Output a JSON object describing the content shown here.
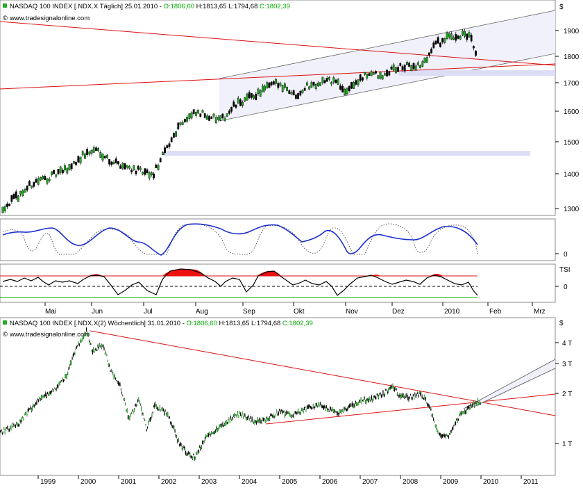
{
  "top_panel": {
    "header": {
      "title": "NASDAQ 100 INDEX [.NDX.X  Täglich] 25.01.2010 - ",
      "ohlc_o": "O:1806,60",
      "ohlc_hl": " H:1813,65 L:1794,68 ",
      "ohlc_c": "C:1802,39"
    },
    "watermark": "www.tradesignalonline.com",
    "currency_symbol": "$",
    "price_ticks": [
      "1900",
      "1800",
      "1700",
      "1600",
      "1500",
      "1400",
      "1300"
    ],
    "oscillator_tick": "0",
    "tsi_label": "TSI",
    "tsi_tick": "0",
    "month_labels": [
      "Mai",
      "Jun",
      "Jul",
      "Aug",
      "Sep",
      "Okt",
      "Nov",
      "Dez",
      "2010",
      "Feb",
      "Mrz"
    ]
  },
  "bottom_panel": {
    "header": {
      "title": "NASDAQ 100 INDEX [.NDX.X(2)  Wöchentlich] 31.01.2010 - ",
      "ohlc_o": "O:1806,60",
      "ohlc_hl": " H:1813,65 L:1794,68 ",
      "ohlc_c": "C:1802,39"
    },
    "watermark": "www.tradesignalonline.com",
    "currency_symbol": "$",
    "price_ticks": [
      "4 T",
      "3 T",
      "2 T",
      "1 T"
    ],
    "year_labels": [
      "1999",
      "2000",
      "2001",
      "2002",
      "2003",
      "2004",
      "2005",
      "2006",
      "2007",
      "2008",
      "2009",
      "2010",
      "2011"
    ]
  },
  "colors": {
    "up_candle": "#22aa22",
    "down_candle": "#000000",
    "trendline": "#dd1111",
    "channel": "#555555",
    "channel_fill": "#f0f0fa",
    "zone": "#dcdef6",
    "oscillator": "#1a2fd0",
    "tsi_fill": "#ee1111",
    "tsi_signal": "#00aa00",
    "green_text": "#00aa00"
  },
  "chart_data": [
    {
      "type": "candlestick",
      "title": "NASDAQ 100 INDEX [.NDX.X Täglich] 25.01.2010",
      "timeframe": "daily",
      "x_range": [
        "Apr 2009",
        "Mrz 2010"
      ],
      "ylim": [
        1270,
        1980
      ],
      "y_ticks": [
        1300,
        1400,
        1500,
        1600,
        1700,
        1800,
        1900
      ],
      "last_bar": {
        "open": 1806.6,
        "high": 1813.65,
        "low": 1794.68,
        "close": 1802.39
      },
      "path": [
        {
          "x": "Apr 2009",
          "y": 1300
        },
        {
          "x": "Mai 2009",
          "y": 1400
        },
        {
          "x": "Jun 2009",
          "y": 1490
        },
        {
          "x": "Jul 2009",
          "y": 1420
        },
        {
          "x": "Aug 2009",
          "y": 1620
        },
        {
          "x": "Sep 2009",
          "y": 1680
        },
        {
          "x": "Okt 2009",
          "y": 1715
        },
        {
          "x": "Nov 2009",
          "y": 1750
        },
        {
          "x": "Dez 2009",
          "y": 1790
        },
        {
          "x": "Jan 2010",
          "y": 1880
        },
        {
          "x": "25.01.2010",
          "y": 1802
        }
      ]
    },
    {
      "type": "candlestick",
      "title": "NASDAQ 100 INDEX [.NDX.X(2) Wöchentlich] 31.01.2010",
      "timeframe": "weekly",
      "yscale": "log",
      "y_ticks": [
        "1 T",
        "2 T",
        "3 T",
        "4 T"
      ],
      "x_range": [
        "1998",
        "2011"
      ],
      "path": [
        {
          "x": 1998.0,
          "y": 1150
        },
        {
          "x": 1999.0,
          "y": 1800
        },
        {
          "x": 1999.9,
          "y": 3700
        },
        {
          "x": 2000.2,
          "y": 4700
        },
        {
          "x": 2001.0,
          "y": 2300
        },
        {
          "x": 2001.6,
          "y": 1400
        },
        {
          "x": 2002.9,
          "y": 830
        },
        {
          "x": 2004.0,
          "y": 1500
        },
        {
          "x": 2005.3,
          "y": 1450
        },
        {
          "x": 2006.5,
          "y": 1550
        },
        {
          "x": 2007.8,
          "y": 2200
        },
        {
          "x": 2008.9,
          "y": 1100
        },
        {
          "x": 2009.2,
          "y": 1120
        },
        {
          "x": 2010.0,
          "y": 1802
        }
      ]
    }
  ]
}
